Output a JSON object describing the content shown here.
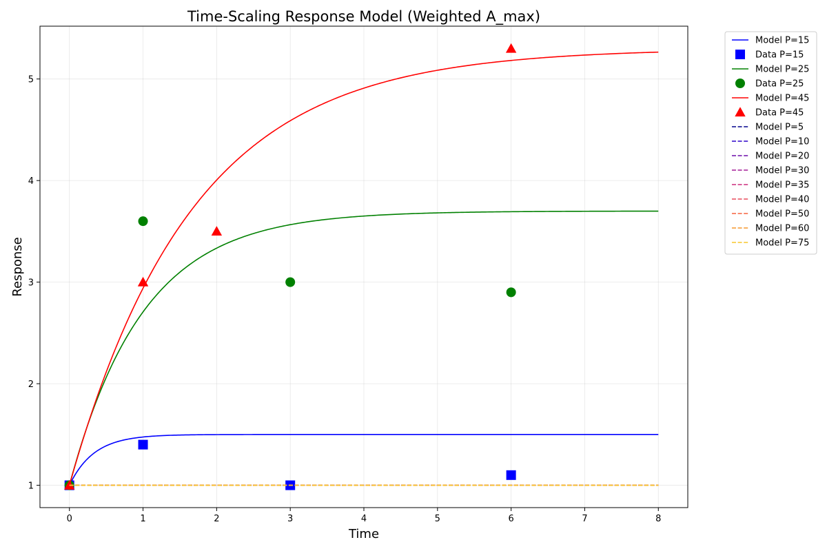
{
  "chart_data": {
    "type": "line",
    "title": "Time-Scaling Response Model (Weighted A_max)",
    "xlabel": "Time",
    "ylabel": "Response",
    "xlim": [
      -0.4,
      8.4
    ],
    "ylim": [
      0.78,
      5.52
    ],
    "xticks": [
      0,
      1,
      2,
      3,
      4,
      5,
      6,
      7,
      8
    ],
    "yticks": [
      1,
      2,
      3,
      4,
      5
    ],
    "grid": true,
    "legend_position": "outside-top-right",
    "model_x_range": [
      0,
      8
    ],
    "series": [
      {
        "kind": "line",
        "name": "Model P=15",
        "color": "#0000ff",
        "dash": "solid",
        "model": {
          "A": 1.5,
          "k": 3.0
        }
      },
      {
        "kind": "scatter",
        "name": "Data P=15",
        "color": "#0000ff",
        "marker": "square",
        "x": [
          0,
          1,
          3,
          6
        ],
        "y": [
          1.0,
          1.4,
          1.0,
          1.1
        ]
      },
      {
        "kind": "line",
        "name": "Model P=25",
        "color": "#008000",
        "dash": "solid",
        "model": {
          "A": 3.7,
          "k": 1.0
        }
      },
      {
        "kind": "scatter",
        "name": "Data P=25",
        "color": "#008000",
        "marker": "circle",
        "x": [
          0,
          1,
          3,
          6
        ],
        "y": [
          1.0,
          3.6,
          3.0,
          2.9
        ]
      },
      {
        "kind": "line",
        "name": "Model P=45",
        "color": "#ff0000",
        "dash": "solid",
        "model": {
          "A": 5.3,
          "k": 0.6
        }
      },
      {
        "kind": "scatter",
        "name": "Data P=45",
        "color": "#ff0000",
        "marker": "triangle",
        "x": [
          0,
          1,
          2,
          6
        ],
        "y": [
          1.0,
          3.0,
          3.5,
          5.3
        ]
      },
      {
        "kind": "line",
        "name": "Model P=5",
        "color": "#00008b",
        "dash": "dashed",
        "model": {
          "A": 1.0,
          "k": 1.0
        }
      },
      {
        "kind": "line",
        "name": "Model P=10",
        "color": "#2a00c8",
        "dash": "dashed",
        "model": {
          "A": 1.0,
          "k": 1.0
        }
      },
      {
        "kind": "line",
        "name": "Model P=20",
        "color": "#6a0aa8",
        "dash": "dashed",
        "model": {
          "A": 1.0,
          "k": 1.0
        }
      },
      {
        "kind": "line",
        "name": "Model P=30",
        "color": "#a31a96",
        "dash": "dashed",
        "model": {
          "A": 1.0,
          "k": 1.0
        }
      },
      {
        "kind": "line",
        "name": "Model P=35",
        "color": "#cc2a7c",
        "dash": "dashed",
        "model": {
          "A": 1.0,
          "k": 1.0
        }
      },
      {
        "kind": "line",
        "name": "Model P=40",
        "color": "#e74a5a",
        "dash": "dashed",
        "model": {
          "A": 1.0,
          "k": 1.0
        }
      },
      {
        "kind": "line",
        "name": "Model P=50",
        "color": "#f5603c",
        "dash": "dashed",
        "model": {
          "A": 1.0,
          "k": 1.0
        }
      },
      {
        "kind": "line",
        "name": "Model P=60",
        "color": "#f5962a",
        "dash": "dashed",
        "model": {
          "A": 1.0,
          "k": 1.0
        }
      },
      {
        "kind": "line",
        "name": "Model P=75",
        "color": "#f7c52a",
        "dash": "dashed",
        "model": {
          "A": 1.0,
          "k": 1.0
        }
      }
    ]
  }
}
